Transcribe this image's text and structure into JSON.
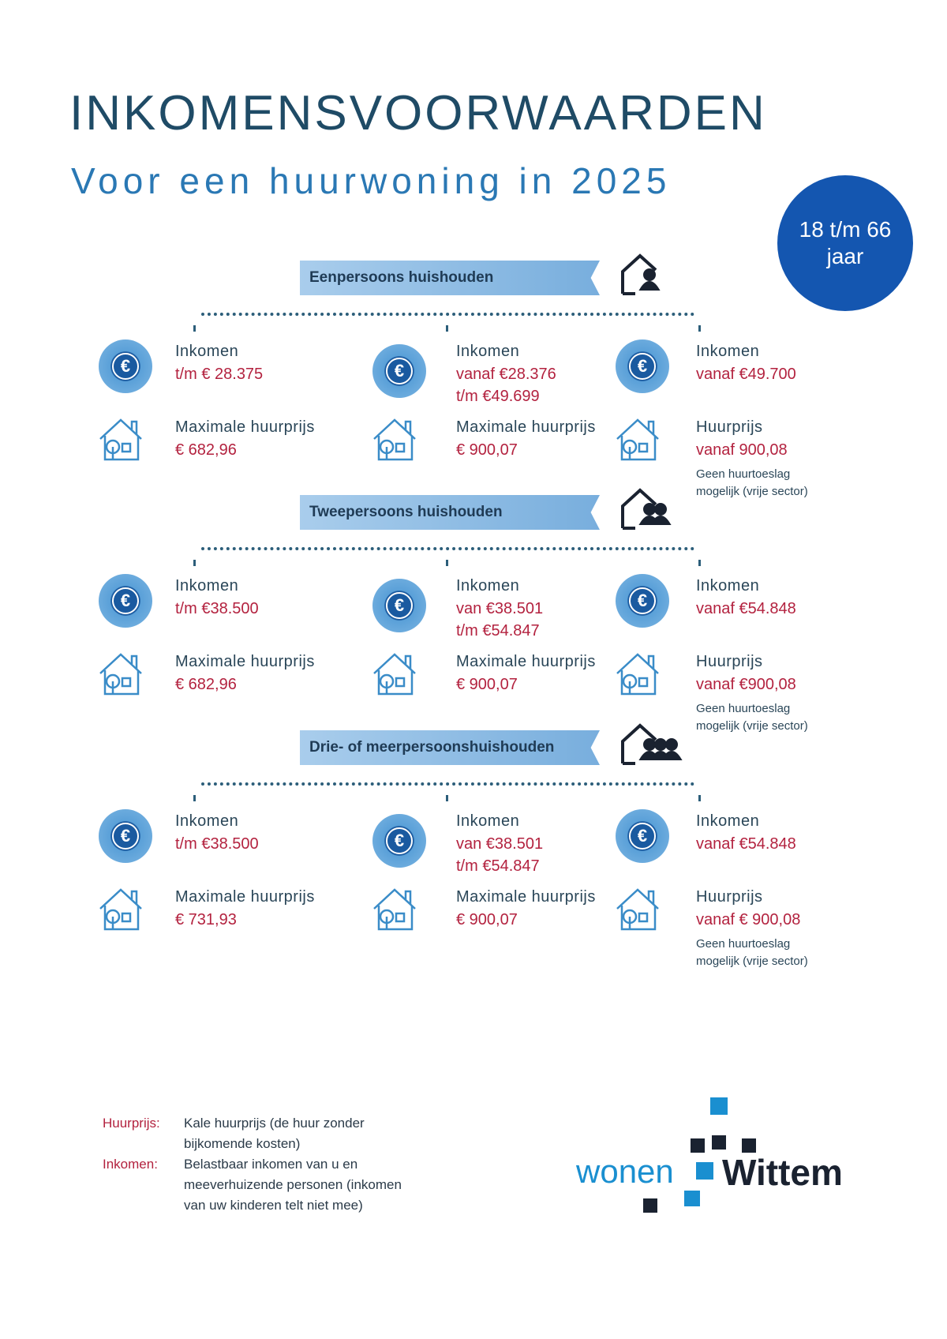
{
  "header": {
    "title": "INKOMENSVOORWAARDEN",
    "subtitle": "Voor een huurwoning in 2025"
  },
  "badge": {
    "line1": "18 t/m 66",
    "line2": "jaar"
  },
  "colors": {
    "title": "#1f4b66",
    "accent": "#2a78b4",
    "value": "#b3223f",
    "badge": "#1456b0"
  },
  "icons": {
    "income": "euro-coin-icon",
    "house": "house-tree-icon",
    "household": "house-people-icon"
  },
  "sections": [
    {
      "title": "Eenpersoons huishouden",
      "people": 1,
      "columns": [
        {
          "income_label": "Inkomen",
          "income": [
            "t/m € 28.375"
          ],
          "rent_label": "Maximale huurprijs",
          "rent": "€ 682,96"
        },
        {
          "income_label": "Inkomen",
          "income": [
            "vanaf €28.376",
            "t/m €49.699"
          ],
          "rent_label": "Maximale huurprijs",
          "rent": "€ 900,07"
        },
        {
          "income_label": "Inkomen",
          "income": [
            "vanaf €49.700"
          ],
          "rent_label": "Huurprijs",
          "rent": "vanaf 900,08",
          "note": [
            "Geen huurtoeslag",
            "mogelijk (vrije sector)"
          ]
        }
      ]
    },
    {
      "title": "Tweepersoons huishouden",
      "people": 2,
      "columns": [
        {
          "income_label": "Inkomen",
          "income": [
            "t/m €38.500"
          ],
          "rent_label": "Maximale huurprijs",
          "rent": "€ 682,96"
        },
        {
          "income_label": "Inkomen",
          "income": [
            "van €38.501",
            "t/m €54.847"
          ],
          "rent_label": "Maximale huurprijs",
          "rent": "€ 900,07"
        },
        {
          "income_label": "Inkomen",
          "income": [
            "vanaf €54.848"
          ],
          "rent_label": "Huurprijs",
          "rent": "vanaf €900,08",
          "note": [
            "Geen huurtoeslag",
            "mogelijk (vrije sector)"
          ]
        }
      ]
    },
    {
      "title": "Drie- of meerpersoonshuishouden",
      "people": 3,
      "columns": [
        {
          "income_label": "Inkomen",
          "income": [
            "t/m €38.500"
          ],
          "rent_label": "Maximale huurprijs",
          "rent": "€ 731,93"
        },
        {
          "income_label": "Inkomen",
          "income": [
            "van €38.501",
            "t/m €54.847"
          ],
          "rent_label": "Maximale huurprijs",
          "rent": "€ 900,07"
        },
        {
          "income_label": "Inkomen",
          "income": [
            "vanaf €54.848"
          ],
          "rent_label": "Huurprijs",
          "rent": "vanaf € 900,08",
          "note": [
            "Geen huurtoeslag",
            "mogelijk (vrije sector)"
          ]
        }
      ]
    }
  ],
  "legend": [
    {
      "key": "Huurprijs:",
      "lines": [
        "Kale huurprijs (de huur zonder",
        "bijkomende kosten)"
      ]
    },
    {
      "key": "Inkomen:",
      "lines": [
        "Belastbaar inkomen van u en",
        "meeverhuizende personen (inkomen",
        "van uw kinderen telt niet mee)"
      ]
    }
  ],
  "logo": {
    "part1": "wonen",
    "part2": "Wittem"
  }
}
